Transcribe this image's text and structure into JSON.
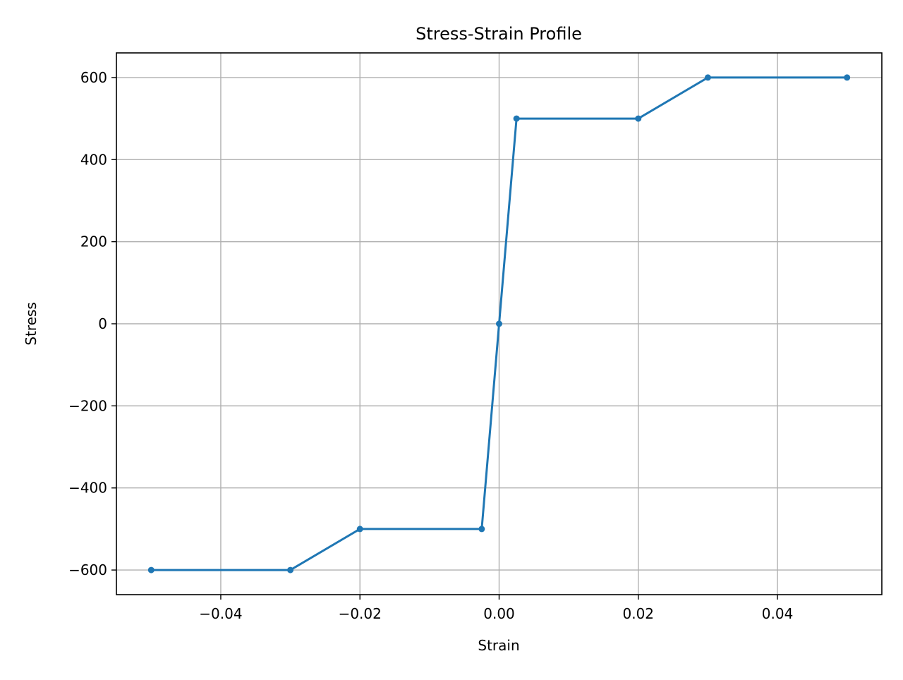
{
  "chart_data": {
    "type": "line",
    "title": "Stress-Strain Profile",
    "xlabel": "Strain",
    "ylabel": "Stress",
    "xlim": [
      -0.055,
      0.055
    ],
    "ylim": [
      -660,
      660
    ],
    "xticks": [
      -0.04,
      -0.02,
      0.0,
      0.02,
      0.04
    ],
    "xtick_labels": [
      "−0.04",
      "−0.02",
      "0.00",
      "0.02",
      "0.04"
    ],
    "yticks": [
      -600,
      -400,
      -200,
      0,
      200,
      400,
      600
    ],
    "ytick_labels": [
      "−600",
      "−400",
      "−200",
      "0",
      "200",
      "400",
      "600"
    ],
    "grid": true,
    "series": [
      {
        "color": "#1f77b4",
        "marker": "circle",
        "x": [
          -0.05,
          -0.03,
          -0.02,
          -0.0025,
          0.0,
          0.0025,
          0.02,
          0.03,
          0.05
        ],
        "y": [
          -600,
          -600,
          -500,
          -500,
          0,
          500,
          500,
          600,
          600
        ]
      }
    ]
  }
}
